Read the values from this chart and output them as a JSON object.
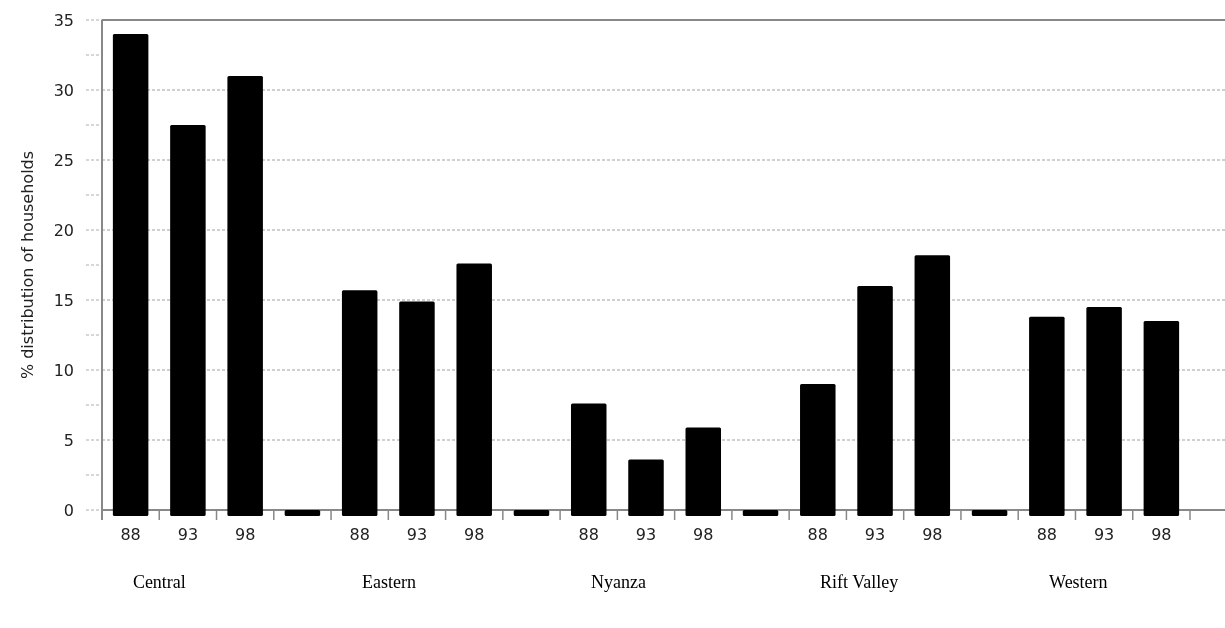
{
  "chart_data": {
    "type": "bar",
    "ylabel": "% distribution of households",
    "categories": [
      "88",
      "93",
      "98",
      null,
      "88",
      "93",
      "98",
      null,
      "88",
      "93",
      "98",
      null,
      "88",
      "93",
      "98",
      null,
      "88",
      "93",
      "98"
    ],
    "values": [
      34.0,
      27.5,
      31.0,
      0,
      15.7,
      14.9,
      17.6,
      0,
      7.6,
      3.6,
      5.9,
      0,
      9.0,
      16.0,
      18.2,
      0,
      13.8,
      14.5,
      13.5
    ],
    "color": "#000000",
    "ylim": [
      0,
      35
    ],
    "yticks": [
      0,
      {
        "value": 2.5,
        "label": null
      },
      5,
      {
        "value": 7.5,
        "label": null
      },
      10,
      {
        "value": 12.5,
        "label": null
      },
      15,
      {
        "value": 17.5,
        "label": null
      },
      20,
      {
        "value": 22.5,
        "label": null
      },
      25,
      {
        "value": 27.5,
        "label": null
      },
      30,
      {
        "value": 32.5,
        "label": null
      },
      35
    ],
    "grid": "y",
    "annotations": [
      "Central",
      "Eastern",
      "Nyanza",
      "Rift Valley",
      "Western"
    ]
  }
}
